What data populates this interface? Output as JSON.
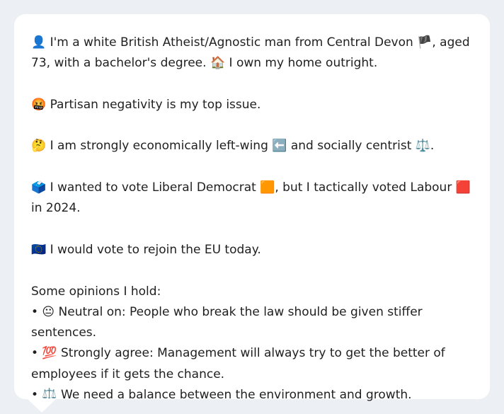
{
  "profile": {
    "line1": "👤 I'm a white British Atheist/Agnostic man from Central Devon 🏴, aged 73, with a bachelor's degree. 🏠 I own my home outright.",
    "top_issue": "🤬 Partisan negativity is my top issue.",
    "ideology": "🤔 I am strongly economically left-wing ⬅️ and socially centrist ⚖️.",
    "vote": "🗳️ I wanted to vote Liberal Democrat 🟧, but I tactically voted Labour 🟥 in 2024.",
    "eu": "🇪🇺 I would vote to rejoin the EU today.",
    "opinions_heading": "Some opinions I hold:",
    "opinions": [
      "• 😐 Neutral on: People who break the law should be given stiffer sentences.",
      "• 💯 Strongly agree: Management will always try to get the better of employees if it gets the chance.",
      "• ⚖️ We need a balance between the environment and growth."
    ]
  }
}
